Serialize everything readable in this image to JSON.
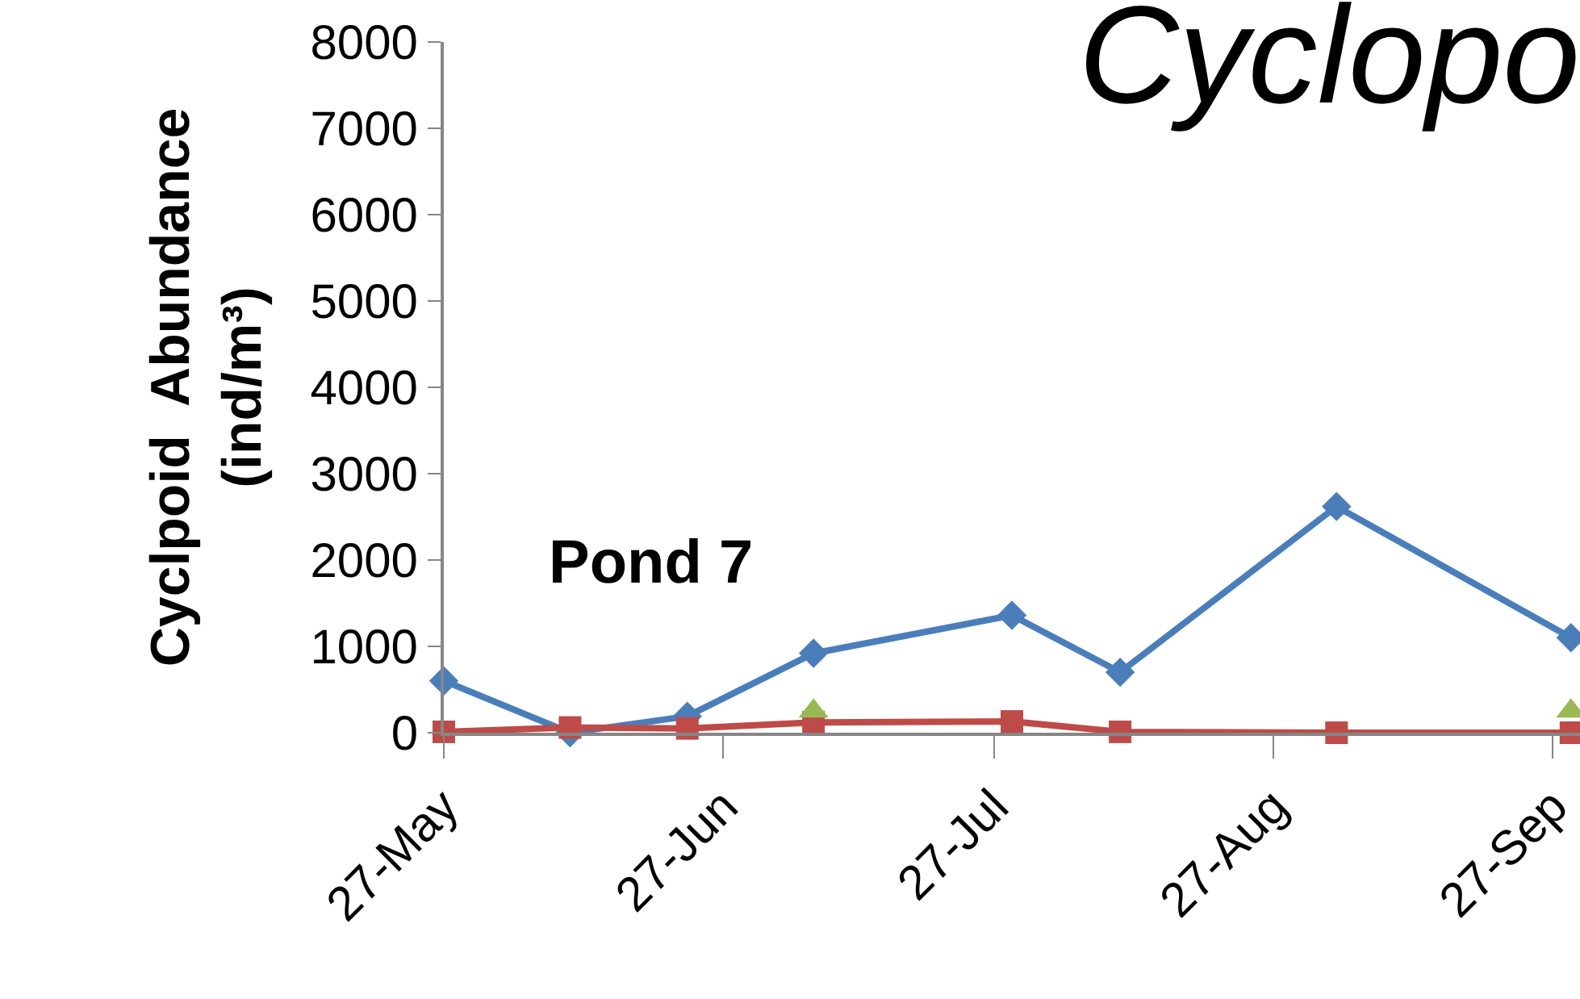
{
  "chart_data": {
    "type": "line",
    "title": "Cyclopo",
    "ylabel": "Cyclpoid  Abundance\n(ind/m³)",
    "annotations": [
      "Pond 7"
    ],
    "x": [
      "--05-27",
      "--06-10",
      "--06-23",
      "--07-07",
      "--07-29",
      "--08-10",
      "--09-03",
      "--09-29"
    ],
    "series": [
      {
        "color": "#4a7ebb",
        "marker": "diamond",
        "values": [
          600,
          0,
          190,
          920,
          1360,
          700,
          2620,
          1100
        ]
      },
      {
        "color": "#be4b48",
        "marker": "square",
        "values": [
          10,
          60,
          50,
          120,
          130,
          10,
          0,
          0
        ]
      },
      {
        "color": "#98b954",
        "marker": "triangle",
        "type": "scatter",
        "x": [
          "--07-07",
          "--09-29"
        ],
        "values": [
          250,
          250
        ]
      }
    ],
    "xlim": [
      "--05-27",
      "--09-30"
    ],
    "xticks": [
      {
        "value": "--05-27",
        "label": "27-May"
      },
      {
        "value": "--06-27",
        "label": "27-Jun"
      },
      {
        "value": "--07-27",
        "label": "27-Jul"
      },
      {
        "value": "--08-27",
        "label": "27-Aug"
      },
      {
        "value": "--09-27",
        "label": "27-Sep"
      }
    ],
    "ylim": [
      0,
      8000
    ],
    "yticks": [
      0,
      1000,
      2000,
      3000,
      4000,
      5000,
      6000,
      7000,
      8000
    ],
    "line_style": "solid"
  }
}
